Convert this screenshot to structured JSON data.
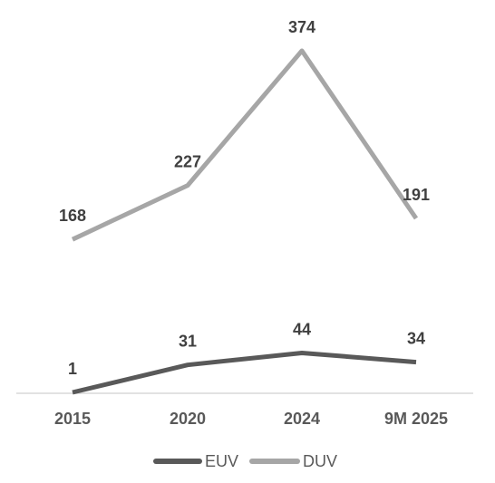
{
  "chart_data": {
    "type": "line",
    "categories": [
      "2015",
      "2020",
      "2024",
      "9M 2025"
    ],
    "series": [
      {
        "name": "EUV",
        "values": [
          1,
          31,
          44,
          34
        ],
        "color": "#595959"
      },
      {
        "name": "DUV",
        "values": [
          168,
          227,
          374,
          191
        ],
        "color": "#a6a6a6"
      }
    ],
    "data_labels": true,
    "grid": false,
    "legend_position": "bottom"
  }
}
